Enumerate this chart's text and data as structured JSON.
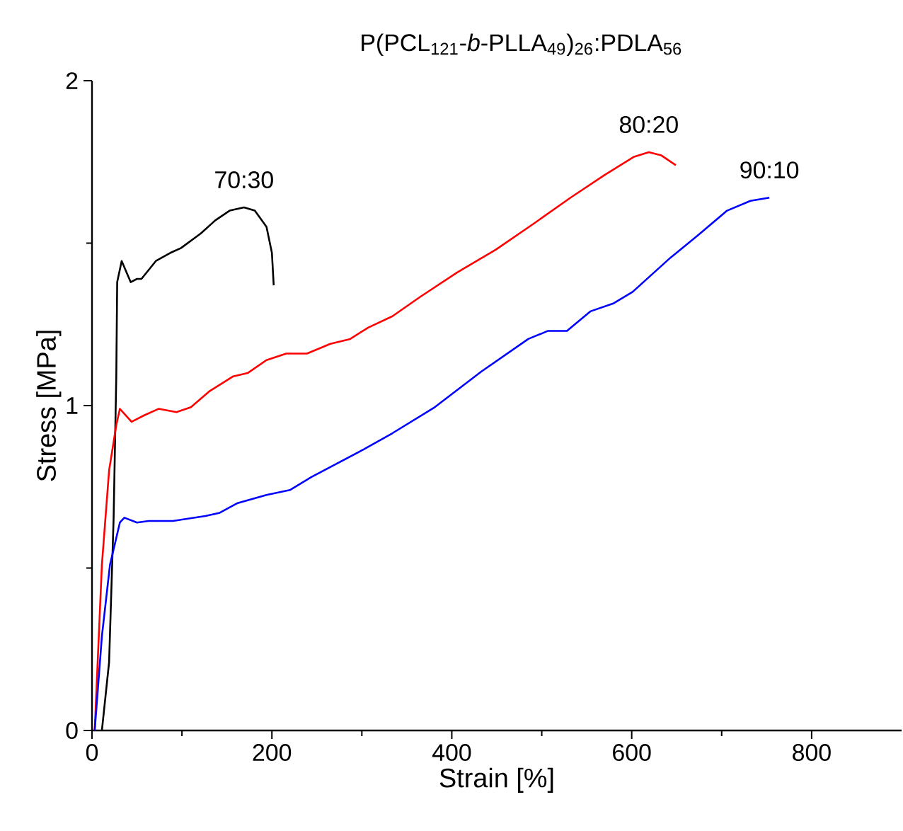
{
  "chart_data": {
    "type": "line",
    "title": "P(PCL$_{121}$-*b*-PLLA$_{49}$)$_{26}$:PDLA$_{56}$",
    "xlabel": "Strain [%]",
    "ylabel": "Stress [MPa]",
    "xlim": [
      0,
      900
    ],
    "ylim": [
      0,
      2
    ],
    "xticks": [
      0,
      {
        "value": 100,
        "label": null
      },
      200,
      {
        "value": 300,
        "label": null
      },
      400,
      {
        "value": 500,
        "label": null
      },
      600,
      {
        "value": 700,
        "label": null
      },
      800
    ],
    "yticks": [
      0,
      {
        "value": 0.5,
        "label": null
      },
      1,
      {
        "value": 1.5,
        "label": null
      },
      2
    ],
    "series": [
      {
        "name": "70:30",
        "color": "#000000",
        "x": [
          11,
          19,
          24,
          27,
          28,
          33,
          43,
          50,
          55,
          71,
          87,
          99,
          121,
          137,
          153,
          169,
          181,
          194,
          200,
          202
        ],
        "values": [
          0,
          0.21,
          0.65,
          1.09,
          1.38,
          1.445,
          1.38,
          1.39,
          1.39,
          1.445,
          1.47,
          1.485,
          1.53,
          1.57,
          1.6,
          1.61,
          1.6,
          1.55,
          1.47,
          1.37
        ]
      },
      {
        "name": "80:20",
        "color": "#ff0000",
        "x": [
          3,
          11,
          19,
          27,
          31,
          44,
          58,
          74,
          94,
          110,
          131,
          157,
          173,
          194,
          216,
          239,
          265,
          287,
          307,
          334,
          365,
          406,
          449,
          491,
          532,
          570,
          602,
          619,
          633,
          649
        ],
        "values": [
          0,
          0.51,
          0.8,
          0.94,
          0.99,
          0.95,
          0.97,
          0.99,
          0.98,
          0.995,
          1.045,
          1.09,
          1.1,
          1.14,
          1.16,
          1.16,
          1.19,
          1.205,
          1.24,
          1.275,
          1.335,
          1.41,
          1.48,
          1.56,
          1.64,
          1.71,
          1.765,
          1.78,
          1.77,
          1.74
        ]
      },
      {
        "name": "90:10",
        "color": "#0000ff",
        "x": [
          3,
          11,
          20,
          31,
          36,
          50,
          63,
          90,
          126,
          142,
          162,
          194,
          220,
          244,
          302,
          334,
          381,
          433,
          485,
          507,
          528,
          554,
          580,
          601,
          643,
          674,
          706,
          732,
          753
        ],
        "values": [
          0,
          0.29,
          0.51,
          0.64,
          0.655,
          0.64,
          0.645,
          0.645,
          0.66,
          0.67,
          0.7,
          0.725,
          0.74,
          0.78,
          0.865,
          0.915,
          0.995,
          1.105,
          1.205,
          1.23,
          1.23,
          1.29,
          1.315,
          1.35,
          1.455,
          1.525,
          1.6,
          1.63,
          1.64
        ]
      }
    ]
  }
}
